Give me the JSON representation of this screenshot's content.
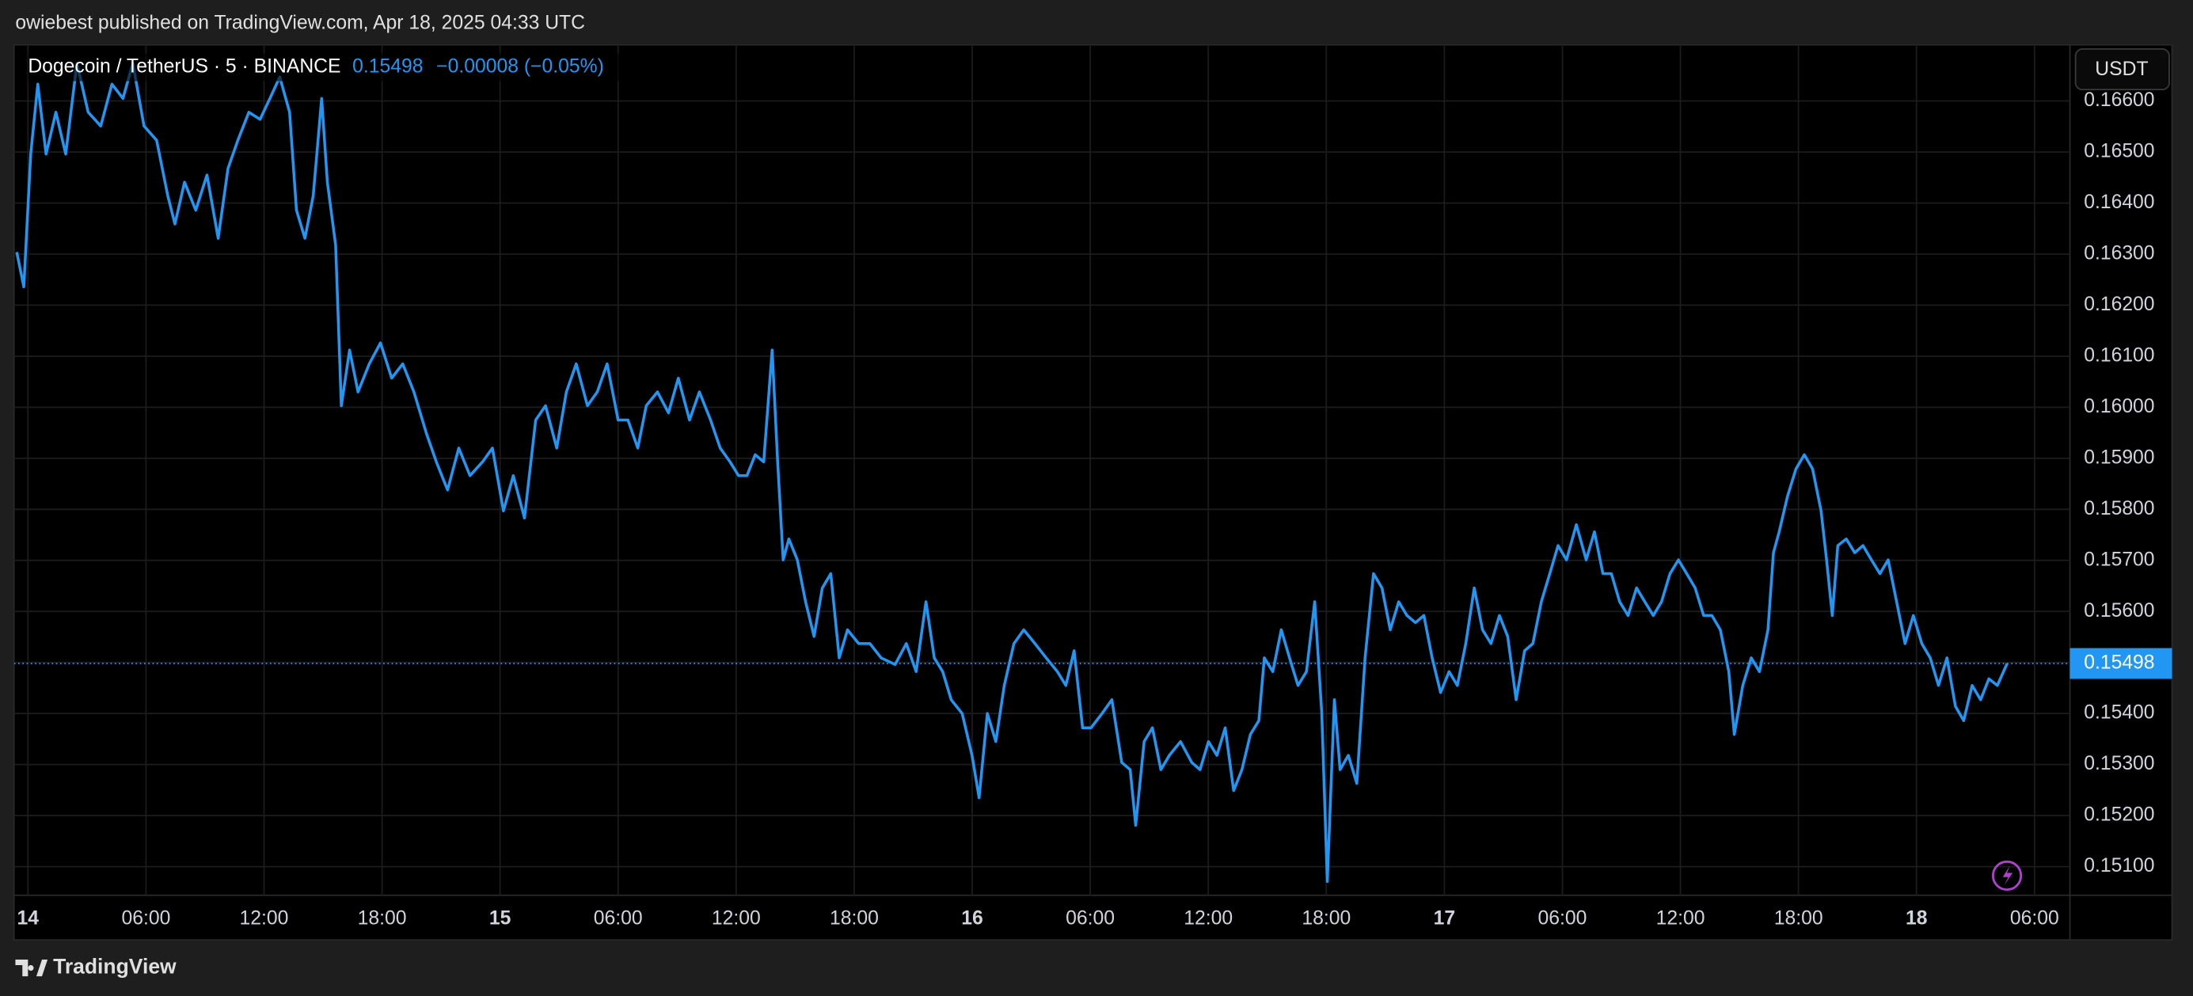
{
  "header": {
    "text": "owiebest published on TradingView.com, Apr 18, 2025 04:33 UTC"
  },
  "footer": {
    "brand": "TradingView"
  },
  "chart_data": {
    "type": "line",
    "title": "Dogecoin / TetherUS · 5 · BINANCE",
    "last_price": 0.15498,
    "change": "−0.00008 (−0.05%)",
    "y_unit": "USDT",
    "color": "#2196f3",
    "grid": true,
    "xlim": [
      -0.71,
      103.8
    ],
    "ylim": [
      0.15044,
      0.1671
    ],
    "xticks": [
      {
        "value": 0,
        "label": "14"
      },
      {
        "value": 6,
        "label": "06:00"
      },
      {
        "value": 12,
        "label": "12:00"
      },
      {
        "value": 18,
        "label": "18:00"
      },
      {
        "value": 24,
        "label": "15"
      },
      {
        "value": 30,
        "label": "06:00"
      },
      {
        "value": 36,
        "label": "12:00"
      },
      {
        "value": 42,
        "label": "18:00"
      },
      {
        "value": 48,
        "label": "16"
      },
      {
        "value": 54,
        "label": "06:00"
      },
      {
        "value": 60,
        "label": "12:00"
      },
      {
        "value": 66,
        "label": "18:00"
      },
      {
        "value": 72,
        "label": "17"
      },
      {
        "value": 78,
        "label": "06:00"
      },
      {
        "value": 84,
        "label": "12:00"
      },
      {
        "value": 90,
        "label": "18:00"
      },
      {
        "value": 96,
        "label": "18"
      },
      {
        "value": 102,
        "label": "06:00"
      }
    ],
    "yticks": [
      {
        "value": 0.151,
        "label": "0.15100"
      },
      {
        "value": 0.152,
        "label": "0.15200"
      },
      {
        "value": 0.153,
        "label": "0.15300"
      },
      {
        "value": 0.154,
        "label": "0.15400"
      },
      {
        "value": 0.155,
        "label": "0.15500"
      },
      {
        "value": 0.156,
        "label": "0.15600"
      },
      {
        "value": 0.157,
        "label": "0.15700"
      },
      {
        "value": 0.158,
        "label": "0.15800"
      },
      {
        "value": 0.159,
        "label": "0.15900"
      },
      {
        "value": 0.16,
        "label": "0.16000"
      },
      {
        "value": 0.161,
        "label": "0.16100"
      },
      {
        "value": 0.162,
        "label": "0.16200"
      },
      {
        "value": 0.163,
        "label": "0.16300"
      },
      {
        "value": 0.164,
        "label": "0.16400"
      },
      {
        "value": 0.165,
        "label": "0.16500"
      },
      {
        "value": 0.166,
        "label": "0.16600"
      }
    ],
    "x": [
      -0.57,
      -0.21,
      0.14,
      0.5,
      0.92,
      1.42,
      1.92,
      2.49,
      3.06,
      3.7,
      4.27,
      4.83,
      5.33,
      5.9,
      6.54,
      7.11,
      7.47,
      7.96,
      8.53,
      9.1,
      9.67,
      10.17,
      10.67,
      11.23,
      11.8,
      12.3,
      12.8,
      13.3,
      13.65,
      14.08,
      14.5,
      14.93,
      15.22,
      15.64,
      15.93,
      16.35,
      16.78,
      17.35,
      17.92,
      18.49,
      19.05,
      19.62,
      20.26,
      20.76,
      21.33,
      21.9,
      22.47,
      23.11,
      23.61,
      24.17,
      24.67,
      25.24,
      25.81,
      26.31,
      26.88,
      27.37,
      27.87,
      28.44,
      28.94,
      29.44,
      30.0,
      30.5,
      31.0,
      31.43,
      32.0,
      32.56,
      33.06,
      33.63,
      34.13,
      34.7,
      35.19,
      35.69,
      36.12,
      36.55,
      36.97,
      37.4,
      37.83,
      38.11,
      38.39,
      38.68,
      39.11,
      39.53,
      39.96,
      40.38,
      40.81,
      41.24,
      41.66,
      42.23,
      42.8,
      43.37,
      44.08,
      44.65,
      45.15,
      45.65,
      46.07,
      46.5,
      46.93,
      47.49,
      47.99,
      48.35,
      48.77,
      49.2,
      49.63,
      50.12,
      50.62,
      51.19,
      51.76,
      52.33,
      52.76,
      53.18,
      53.61,
      54.04,
      54.6,
      55.1,
      55.6,
      56.03,
      56.31,
      56.74,
      57.16,
      57.59,
      58.02,
      58.59,
      59.16,
      59.58,
      60.01,
      60.44,
      60.86,
      61.29,
      61.71,
      62.14,
      62.57,
      62.85,
      63.28,
      63.71,
      64.13,
      64.56,
      64.99,
      65.41,
      65.77,
      66.05,
      66.41,
      66.7,
      67.12,
      67.55,
      67.97,
      68.4,
      68.83,
      69.25,
      69.68,
      70.1,
      70.53,
      70.96,
      71.38,
      71.81,
      72.24,
      72.66,
      73.09,
      73.52,
      73.94,
      74.37,
      74.8,
      75.22,
      75.65,
      76.08,
      76.5,
      76.93,
      77.36,
      77.78,
      78.21,
      78.71,
      79.21,
      79.63,
      80.06,
      80.49,
      80.91,
      81.34,
      81.77,
      82.19,
      82.62,
      83.04,
      83.47,
      83.9,
      84.32,
      84.75,
      85.18,
      85.6,
      86.03,
      86.46,
      86.74,
      87.17,
      87.6,
      88.02,
      88.45,
      88.73,
      89.02,
      89.44,
      89.87,
      90.3,
      90.72,
      91.15,
      91.43,
      91.72,
      92.0,
      92.43,
      92.86,
      93.28,
      93.71,
      94.14,
      94.56,
      94.99,
      95.42,
      95.84,
      96.27,
      96.7,
      97.12,
      97.55,
      97.98,
      98.4,
      98.83,
      99.26,
      99.68,
      100.11,
      100.61
    ],
    "values": [
      0.16304,
      0.16236,
      0.16496,
      0.16633,
      0.16496,
      0.16578,
      0.16496,
      0.16674,
      0.16578,
      0.16551,
      0.16633,
      0.16605,
      0.16674,
      0.16551,
      0.16523,
      0.16414,
      0.16359,
      0.16441,
      0.16386,
      0.16455,
      0.16331,
      0.16468,
      0.16523,
      0.16578,
      0.16564,
      0.16605,
      0.16647,
      0.16578,
      0.16386,
      0.16331,
      0.16414,
      0.16605,
      0.16441,
      0.16318,
      0.16003,
      0.16112,
      0.1603,
      0.16085,
      0.16126,
      0.16057,
      0.16085,
      0.1603,
      0.15948,
      0.15893,
      0.15838,
      0.1592,
      0.15866,
      0.15893,
      0.1592,
      0.15797,
      0.15866,
      0.15783,
      0.15975,
      0.16003,
      0.1592,
      0.1603,
      0.16085,
      0.16003,
      0.1603,
      0.16085,
      0.15975,
      0.15975,
      0.1592,
      0.16003,
      0.1603,
      0.15989,
      0.16057,
      0.15975,
      0.1603,
      0.15975,
      0.1592,
      0.15893,
      0.15866,
      0.15866,
      0.15907,
      0.15893,
      0.16112,
      0.15893,
      0.15701,
      0.15742,
      0.15701,
      0.15619,
      0.15551,
      0.15646,
      0.15674,
      0.15509,
      0.15564,
      0.15537,
      0.15537,
      0.15509,
      0.15496,
      0.15537,
      0.15482,
      0.15619,
      0.15509,
      0.15482,
      0.15427,
      0.154,
      0.15318,
      0.15235,
      0.154,
      0.15345,
      0.15455,
      0.15537,
      0.15564,
      0.15537,
      0.15509,
      0.15482,
      0.15455,
      0.15523,
      0.15372,
      0.15372,
      0.154,
      0.15427,
      0.15304,
      0.1529,
      0.15181,
      0.15345,
      0.15372,
      0.1529,
      0.15318,
      0.15345,
      0.15304,
      0.1529,
      0.15345,
      0.15318,
      0.15372,
      0.15249,
      0.1529,
      0.15359,
      0.15386,
      0.15509,
      0.15482,
      0.15564,
      0.15509,
      0.15455,
      0.15482,
      0.15619,
      0.154,
      0.15071,
      0.15427,
      0.1529,
      0.15318,
      0.15263,
      0.15509,
      0.15674,
      0.15646,
      0.15564,
      0.15619,
      0.15592,
      0.15578,
      0.15592,
      0.15509,
      0.15441,
      0.15482,
      0.15455,
      0.15537,
      0.15646,
      0.15564,
      0.15537,
      0.15592,
      0.15551,
      0.15427,
      0.15523,
      0.15537,
      0.15619,
      0.15674,
      0.15729,
      0.15701,
      0.1577,
      0.15701,
      0.15756,
      0.15674,
      0.15674,
      0.15619,
      0.15592,
      0.15646,
      0.15619,
      0.15592,
      0.15619,
      0.15674,
      0.15701,
      0.15674,
      0.15646,
      0.15592,
      0.15592,
      0.15564,
      0.15482,
      0.15359,
      0.15455,
      0.15509,
      0.15482,
      0.15564,
      0.15715,
      0.15756,
      0.15825,
      0.15879,
      0.15907,
      0.15879,
      0.15797,
      0.15701,
      0.15592,
      0.15729,
      0.15742,
      0.15715,
      0.15729,
      0.15701,
      0.15674,
      0.15701,
      0.15619,
      0.15537,
      0.15592,
      0.15537,
      0.15509,
      0.15455,
      0.15509,
      0.15414,
      0.15386,
      0.15455,
      0.15427,
      0.15468,
      0.15455,
      0.15498
    ]
  }
}
